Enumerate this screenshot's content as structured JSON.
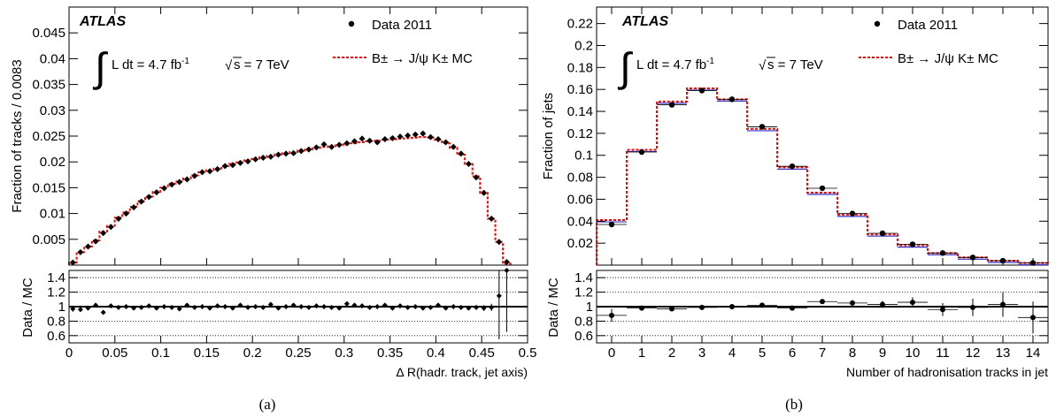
{
  "captions": [
    "(a)",
    "(b)"
  ],
  "chart_data": [
    {
      "type": "scatter",
      "panel": "a",
      "atlas_label": "ATLAS",
      "lumi_text": "L dt = 4.7 fb",
      "lumi_sup": "-1",
      "energy_text": "s = 7 TeV",
      "ylabel": "Fraction of tracks / 0.0083",
      "xlabel": "Δ R(hadr. track, jet axis)",
      "ratio_ylabel": "Data / MC",
      "legend": [
        {
          "kind": "data",
          "label": "Data 2011"
        },
        {
          "kind": "mc",
          "label": "B± → J/ψ K± MC"
        }
      ],
      "xlim": [
        0,
        0.5
      ],
      "ylim": [
        0,
        0.05
      ],
      "ratio_ylim": [
        0.5,
        1.5
      ],
      "xticks": [
        0,
        0.05,
        0.1,
        0.15,
        0.2,
        0.25,
        0.3,
        0.35,
        0.4,
        0.45,
        0.5
      ],
      "xtick_labels": [
        "0",
        "0.05",
        "0.1",
        "0.15",
        "0.2",
        "0.25",
        "0.3",
        "0.35",
        "0.4",
        "0.45",
        "0.5"
      ],
      "yticks": [
        0.005,
        0.01,
        0.015,
        0.02,
        0.025,
        0.03,
        0.035,
        0.04,
        0.045
      ],
      "ytick_labels": [
        "0.005",
        "0.01",
        "0.015",
        "0.02",
        "0.025",
        "0.03",
        "0.035",
        "0.04",
        "0.045"
      ],
      "ratio_yticks": [
        0.6,
        0.8,
        1,
        1.2,
        1.4
      ],
      "ratio_ytick_labels": [
        "0.6",
        "0.8",
        "1",
        "1.2",
        "1.4"
      ],
      "ratio_gridlines": [
        0.6,
        0.8,
        1.2,
        1.4
      ],
      "bin_width": 0.0083,
      "data_marker": "diamond",
      "data": [
        0.0005,
        0.0025,
        0.0036,
        0.0046,
        0.0062,
        0.0074,
        0.009,
        0.01,
        0.0112,
        0.0123,
        0.0132,
        0.0141,
        0.0149,
        0.0156,
        0.0161,
        0.0166,
        0.0173,
        0.018,
        0.0182,
        0.0186,
        0.0192,
        0.0194,
        0.0198,
        0.0201,
        0.0205,
        0.0208,
        0.021,
        0.0214,
        0.0216,
        0.0217,
        0.0221,
        0.0224,
        0.0228,
        0.0234,
        0.0229,
        0.0233,
        0.0236,
        0.024,
        0.0245,
        0.0241,
        0.0238,
        0.0244,
        0.0246,
        0.0249,
        0.0251,
        0.0253,
        0.0255,
        0.0248,
        0.0244,
        0.0238,
        0.0229,
        0.0216,
        0.0196,
        0.017,
        0.014,
        0.009,
        0.0045,
        0.0006
      ],
      "mc": [
        0.0005,
        0.0025,
        0.0036,
        0.0048,
        0.0065,
        0.0076,
        0.0092,
        0.0102,
        0.0113,
        0.0124,
        0.0133,
        0.0142,
        0.015,
        0.0158,
        0.0162,
        0.0168,
        0.0174,
        0.018,
        0.0184,
        0.0187,
        0.0192,
        0.0196,
        0.0199,
        0.0203,
        0.0206,
        0.0209,
        0.0212,
        0.0215,
        0.0217,
        0.0219,
        0.0222,
        0.0224,
        0.0227,
        0.0229,
        0.023,
        0.0232,
        0.0234,
        0.0236,
        0.0238,
        0.024,
        0.0241,
        0.0243,
        0.0244,
        0.0245,
        0.0246,
        0.0247,
        0.0248,
        0.0247,
        0.0243,
        0.0236,
        0.0227,
        0.0214,
        0.0196,
        0.0172,
        0.014,
        0.009,
        0.0045,
        0.0003
      ],
      "ratio": [
        0.97,
        0.96,
        0.98,
        1.02,
        0.92,
        1.01,
        0.99,
        1.0,
        0.98,
        0.99,
        1.01,
        0.98,
        1.0,
        0.99,
        0.97,
        1.02,
        0.99,
        1.0,
        0.98,
        1.01,
        1.0,
        0.98,
        1.02,
        0.99,
        1.0,
        0.99,
        1.03,
        0.98,
        1.0,
        1.02,
        1.0,
        0.99,
        1.01,
        1.0,
        0.99,
        0.98,
        1.04,
        1.02,
        1.01,
        0.99,
        1.0,
        1.02,
        0.98,
        1.01,
        0.99,
        1.0,
        0.98,
        0.99,
        1.02,
        0.98,
        1.0,
        0.99,
        0.98,
        0.99,
        0.98,
        0.99,
        1.15,
        1.55
      ],
      "ratio_errors": [
        0.04,
        0.03,
        0.03,
        0.03,
        0.03,
        0.02,
        0.02,
        0.02,
        0.02,
        0.02,
        0.02,
        0.02,
        0.02,
        0.02,
        0.02,
        0.02,
        0.02,
        0.02,
        0.02,
        0.02,
        0.02,
        0.02,
        0.02,
        0.02,
        0.02,
        0.02,
        0.02,
        0.02,
        0.02,
        0.02,
        0.02,
        0.02,
        0.02,
        0.02,
        0.02,
        0.02,
        0.02,
        0.02,
        0.02,
        0.02,
        0.02,
        0.02,
        0.02,
        0.02,
        0.02,
        0.02,
        0.02,
        0.02,
        0.02,
        0.02,
        0.02,
        0.02,
        0.03,
        0.03,
        0.04,
        0.05,
        0.6,
        0.9
      ]
    },
    {
      "type": "scatter",
      "panel": "b",
      "atlas_label": "ATLAS",
      "lumi_text": "L dt = 4.7 fb",
      "lumi_sup": "-1",
      "energy_text": "s = 7 TeV",
      "ylabel": "Fraction of jets",
      "xlabel": "Number of hadronisation tracks in jet",
      "ratio_ylabel": "Data / MC",
      "legend": [
        {
          "kind": "data",
          "label": "Data 2011"
        },
        {
          "kind": "mc",
          "label": "B± → J/ψ K± MC"
        }
      ],
      "xlim": [
        -0.5,
        14.5
      ],
      "ylim": [
        0,
        0.235
      ],
      "ratio_ylim": [
        0.5,
        1.5
      ],
      "xticks": [
        0,
        1,
        2,
        3,
        4,
        5,
        6,
        7,
        8,
        9,
        10,
        11,
        12,
        13,
        14
      ],
      "xtick_labels": [
        "0",
        "1",
        "2",
        "3",
        "4",
        "5",
        "6",
        "7",
        "8",
        "9",
        "10",
        "11",
        "12",
        "13",
        "14"
      ],
      "yticks": [
        0.02,
        0.04,
        0.06,
        0.08,
        0.1,
        0.12,
        0.14,
        0.16,
        0.18,
        0.2,
        0.22
      ],
      "ytick_labels": [
        "0.02",
        "0.04",
        "0.06",
        "0.08",
        "0.1",
        "0.12",
        "0.14",
        "0.16",
        "0.18",
        "0.2",
        "0.22"
      ],
      "ratio_yticks": [
        0.6,
        0.8,
        1,
        1.2,
        1.4
      ],
      "ratio_ytick_labels": [
        "0.6",
        "0.8",
        "1",
        "1.2",
        "1.4"
      ],
      "ratio_gridlines": [
        0.6,
        0.8,
        1.2,
        1.4
      ],
      "bin_width": 1,
      "data_marker": "circle",
      "data": [
        0.037,
        0.103,
        0.146,
        0.159,
        0.151,
        0.126,
        0.09,
        0.07,
        0.047,
        0.029,
        0.019,
        0.011,
        0.007,
        0.004,
        0.002
      ],
      "mc": [
        0.041,
        0.105,
        0.149,
        0.161,
        0.151,
        0.124,
        0.089,
        0.066,
        0.046,
        0.028,
        0.018,
        0.011,
        0.007,
        0.004,
        0.002
      ],
      "ratio": [
        0.88,
        0.98,
        0.97,
        0.99,
        1.0,
        1.02,
        0.98,
        1.07,
        1.05,
        1.03,
        1.06,
        0.96,
        0.99,
        1.03,
        0.85
      ],
      "ratio_errors": [
        0.09,
        0.02,
        0.02,
        0.02,
        0.02,
        0.02,
        0.02,
        0.03,
        0.04,
        0.05,
        0.07,
        0.09,
        0.12,
        0.17,
        0.22
      ]
    }
  ],
  "colors": {
    "data": "#000000",
    "mc": "#ff0000",
    "mc_band": "#3333cc",
    "grid": "#000000"
  }
}
